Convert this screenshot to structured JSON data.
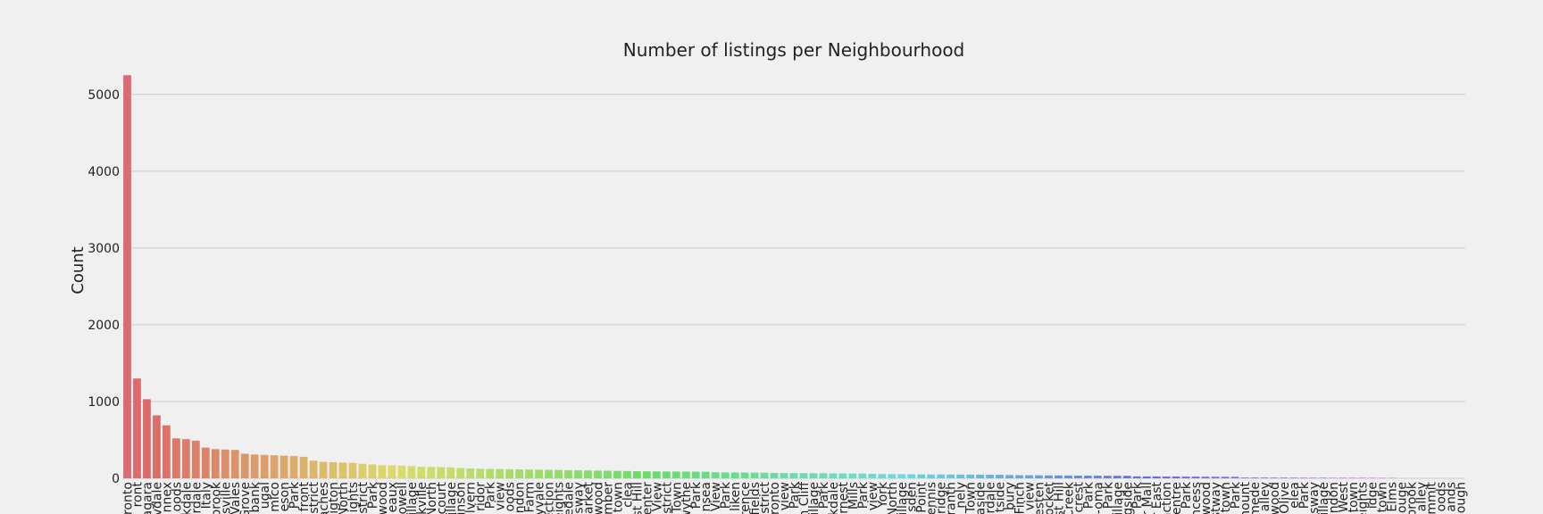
{
  "chart_data": {
    "type": "bar",
    "title": "Number of listings per Neighbourhood",
    "xlabel": "",
    "ylabel": "Count",
    "ylim": [
      0,
      5300
    ],
    "yticks": [
      "0",
      "1000",
      "2000",
      "3000",
      "4000",
      "5000"
    ],
    "grid": "horizontal",
    "legend": "none",
    "categories": [
      "ronto",
      "ront",
      "agara",
      "vdale",
      "nnex",
      "oods",
      "kdale",
      "rdale",
      "Italy",
      "brook",
      "sville",
      "Vales",
      "Grove",
      "bank",
      "ugal",
      "mico",
      "eson",
      "Park",
      "front",
      "istrict",
      "aches",
      "igton",
      "North",
      "ights",
      "strict",
      "Park",
      "wood",
      "eaux",
      "owell",
      "illage",
      "kville",
      "North",
      "court",
      "illage",
      "inson",
      "elvern",
      "ridor",
      "Park",
      "view",
      "oods",
      "ndon",
      "Farm",
      "vyvale",
      "ection",
      "eights",
      "edale",
      "sway",
      "arket",
      "wood",
      "mber",
      "town",
      "clea",
      "st Hill",
      "enter",
      "View",
      "istrict",
      "Town",
      "wythe",
      "Park",
      "nsea",
      "View",
      "Park",
      "liken",
      "rence",
      "fields",
      "istrict",
      "oronto",
      "view",
      "Park",
      "n Cliff",
      "illage",
      "Park",
      "kdale",
      "rnest",
      "Mills",
      "Park",
      "view",
      "York",
      "North",
      "illage",
      "sden",
      "Point",
      "ennis",
      "ridge",
      "ranth",
      "nely",
      "Town",
      "aside",
      "rdale",
      "tside",
      "bury",
      "Finch",
      "view",
      "esten",
      "ocket",
      "st Hill",
      "Creek",
      "crest",
      "Park",
      "-oma",
      "Park",
      "illage",
      "gside",
      "Park",
      "r Mall",
      "r East",
      "nction",
      "entre",
      "Park",
      "ncess",
      "wood",
      "stway",
      "town",
      "Park",
      "mount",
      "mede",
      "alley",
      "wood",
      "Olive",
      "elea",
      "Park",
      "sway",
      "illage",
      "ondon",
      "West",
      "town",
      "eights",
      "idge",
      "town",
      "Elms",
      "ouge",
      "brook",
      "alley",
      "mmit",
      "oods",
      "ands",
      "ough"
    ],
    "values": [
      5250,
      1300,
      1030,
      820,
      690,
      520,
      510,
      490,
      400,
      380,
      375,
      370,
      320,
      310,
      305,
      300,
      295,
      290,
      280,
      230,
      215,
      210,
      205,
      200,
      190,
      180,
      170,
      168,
      165,
      160,
      150,
      148,
      145,
      142,
      135,
      128,
      125,
      122,
      120,
      118,
      115,
      114,
      112,
      110,
      108,
      106,
      104,
      102,
      100,
      99,
      97,
      95,
      93,
      91,
      90,
      89,
      88,
      87,
      86,
      85,
      78,
      77,
      76,
      75,
      74,
      73,
      70,
      69,
      68,
      67,
      66,
      65,
      64,
      63,
      62,
      61,
      58,
      55,
      54,
      53,
      52,
      51,
      50,
      50,
      49,
      48,
      48,
      47,
      47,
      46,
      42,
      40,
      40,
      39,
      38,
      37,
      36,
      35,
      34,
      34,
      33,
      33,
      32,
      25,
      24,
      24,
      23,
      23,
      22,
      22,
      21,
      21,
      20,
      20,
      10,
      10,
      10,
      9,
      9,
      9,
      8,
      8,
      8,
      7,
      7,
      7,
      7,
      6,
      6,
      5,
      0,
      0,
      0,
      0,
      0,
      0,
      0
    ]
  }
}
